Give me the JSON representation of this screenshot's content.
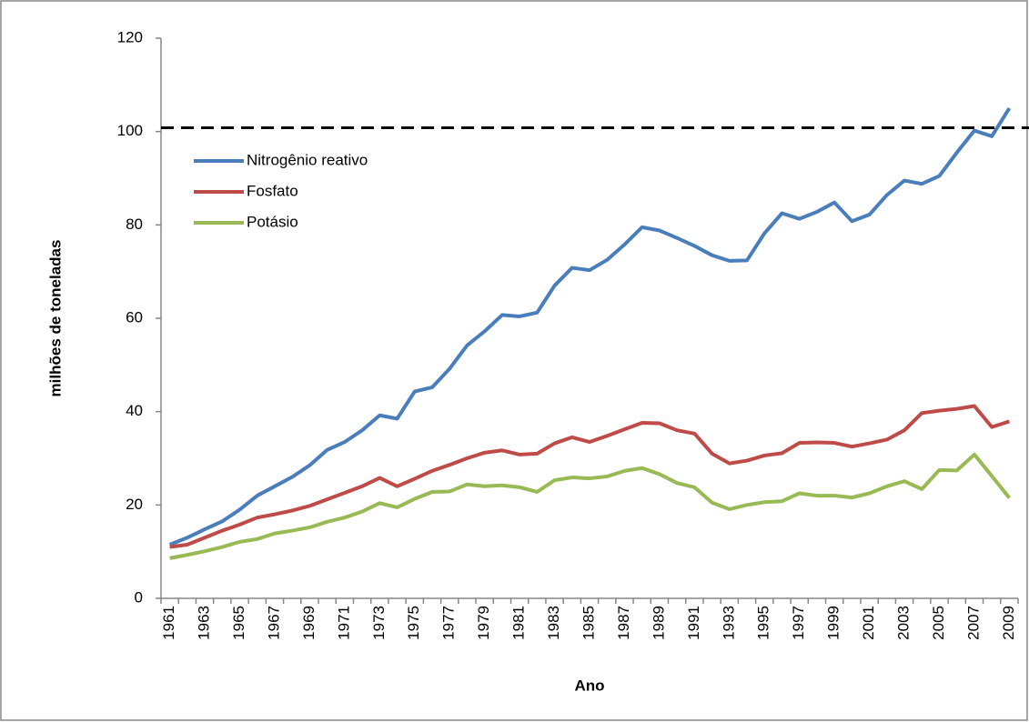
{
  "chart_data": {
    "type": "line",
    "y_label": "milhões de toneladas",
    "x_label": "Ano",
    "categories": [
      "1961",
      null,
      "1963",
      null,
      "1965",
      null,
      "1967",
      null,
      "1969",
      null,
      "1971",
      null,
      "1973",
      null,
      "1975",
      null,
      "1977",
      null,
      "1979",
      null,
      "1981",
      null,
      "1983",
      null,
      "1985",
      null,
      "1987",
      null,
      "1989",
      null,
      "1991",
      null,
      "1993",
      null,
      "1995",
      null,
      "1997",
      null,
      "1999",
      null,
      "2001",
      null,
      "2003",
      null,
      "2005",
      null,
      "2007",
      null,
      "2009"
    ],
    "series": [
      {
        "name": "Nitrogênio reativo",
        "color": "#4a7ebb",
        "values": [
          11.5,
          13,
          14.8,
          16.5,
          19,
          22,
          24,
          26,
          28.5,
          31.8,
          33.5,
          36,
          39.2,
          38.5,
          44.3,
          45.2,
          49.2,
          54.2,
          57.2,
          60.7,
          60.4,
          61.2,
          67,
          70.8,
          70.3,
          72.5,
          75.8,
          79.5,
          78.8,
          77.2,
          75.5,
          73.5,
          72.3,
          72.4,
          78.2,
          82.5,
          81.3,
          82.8,
          84.8,
          80.8,
          82.2,
          86.4,
          89.5,
          88.8,
          90.5,
          95.5,
          100.2,
          99,
          105
        ]
      },
      {
        "name": "Fosfato",
        "color": "#be4b48",
        "values": [
          11,
          11.5,
          13,
          14.5,
          15.8,
          17.3,
          18,
          18.8,
          19.8,
          21.2,
          22.6,
          24,
          25.8,
          24,
          25.6,
          27.3,
          28.6,
          30,
          31.2,
          31.7,
          30.8,
          31,
          33.2,
          34.5,
          33.5,
          34.8,
          36.2,
          37.6,
          37.5,
          36,
          35.3,
          31,
          28.9,
          29.5,
          30.6,
          31.1,
          33.3,
          33.4,
          33.3,
          32.5,
          33.2,
          34,
          36,
          39.7,
          40.2,
          40.6,
          41.2,
          36.7,
          37.9
        ]
      },
      {
        "name": "Potásio",
        "color": "#98b954",
        "values": [
          8.6,
          9.3,
          10.1,
          11,
          12.1,
          12.7,
          13.9,
          14.5,
          15.2,
          16.4,
          17.3,
          18.6,
          20.4,
          19.5,
          21.3,
          22.8,
          22.9,
          24.4,
          24,
          24.2,
          23.8,
          22.8,
          25.3,
          25.9,
          25.7,
          26.1,
          27.3,
          27.9,
          26.6,
          24.7,
          23.8,
          20.5,
          19.1,
          20,
          20.6,
          20.8,
          22.5,
          22,
          22,
          21.6,
          22.5,
          24,
          25.1,
          23.4,
          27.5,
          27.4,
          30.8,
          26.2,
          21.5
        ]
      }
    ],
    "ylim": [
      0,
      120
    ],
    "yticks": [
      0,
      20,
      40,
      60,
      80,
      100,
      120
    ],
    "grid": false,
    "legend": "upper left",
    "reference_line": {
      "value": 100.8,
      "style": "dashed",
      "color": "#000000"
    }
  }
}
